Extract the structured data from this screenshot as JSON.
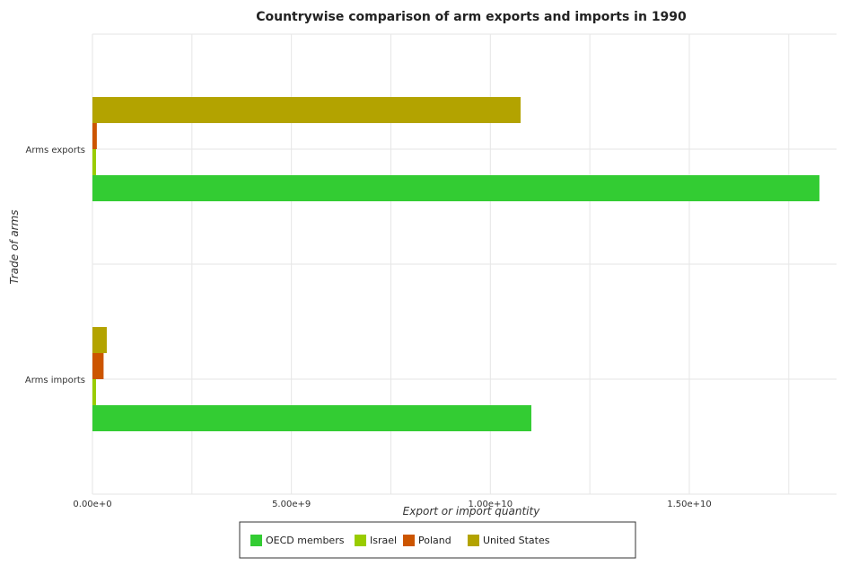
{
  "chart_data": {
    "type": "bar",
    "orientation": "horizontal",
    "title": "Countrywise comparison of arm exports and imports in 1990",
    "xlabel": "Export or import quantity",
    "ylabel": "Trade of arms",
    "categories": [
      "Arms exports",
      "Arms imports"
    ],
    "series": [
      {
        "name": "OECD members",
        "color": "#33cc33",
        "values": [
          18270000000,
          11030000000
        ]
      },
      {
        "name": "Israel",
        "color": "#99cc00",
        "values": [
          90000000,
          90000000
        ]
      },
      {
        "name": "Poland",
        "color": "#cc5500",
        "values": [
          110000000,
          280000000
        ]
      },
      {
        "name": "United States",
        "color": "#b3a300",
        "values": [
          10760000000,
          360000000
        ]
      }
    ],
    "xlim": [
      0,
      18700000000
    ],
    "xticks": [
      0,
      5000000000,
      10000000000,
      15000000000
    ],
    "xtick_labels": [
      "0.00e+0",
      "5.00e+9",
      "1.00e+10",
      "1.50e+10"
    ],
    "grid": true,
    "legend_position": "bottom"
  }
}
